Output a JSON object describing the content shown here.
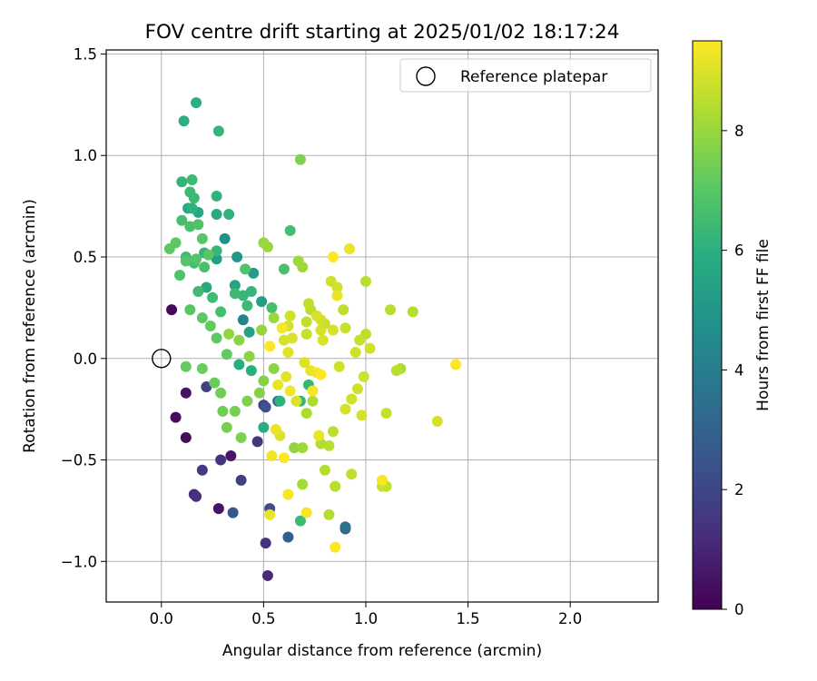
{
  "chart_data": {
    "type": "scatter",
    "title": "FOV centre drift starting at 2025/01/02 18:17:24",
    "xlabel": "Angular distance from reference (arcmin)",
    "ylabel": "Rotation from reference (arcmin)",
    "xlim": [
      -0.27,
      2.43
    ],
    "ylim": [
      -1.2,
      1.52
    ],
    "xticks": [
      {
        "v": 0.0,
        "label": "0.0"
      },
      {
        "v": 0.5,
        "label": "0.5"
      },
      {
        "v": 1.0,
        "label": "1.0"
      },
      {
        "v": 1.5,
        "label": "1.5"
      },
      {
        "v": 2.0,
        "label": "2.0"
      }
    ],
    "yticks": [
      {
        "v": -1.0,
        "label": "−1.0"
      },
      {
        "v": -0.5,
        "label": "−0.5"
      },
      {
        "v": 0.0,
        "label": "0.0"
      },
      {
        "v": 0.5,
        "label": "0.5"
      },
      {
        "v": 1.0,
        "label": "1.0"
      },
      {
        "v": 1.5,
        "label": "1.5"
      }
    ],
    "grid": true,
    "legend": {
      "position": "top-right",
      "label": "Reference platepar"
    },
    "reference_point": {
      "x": 0.0,
      "y": 0.0
    },
    "colorbar": {
      "label": "Hours from first FF file",
      "colormap": "viridis",
      "range": [
        0,
        9.5
      ],
      "ticks": [
        {
          "v": 0,
          "label": "0"
        },
        {
          "v": 2,
          "label": "2"
        },
        {
          "v": 4,
          "label": "4"
        },
        {
          "v": 6,
          "label": "6"
        },
        {
          "v": 8,
          "label": "8"
        }
      ]
    },
    "points": [
      [
        0.05,
        0.24,
        0.2
      ],
      [
        0.07,
        -0.29,
        0.3
      ],
      [
        0.12,
        -0.39,
        0.3
      ],
      [
        0.12,
        -0.17,
        0.5
      ],
      [
        0.28,
        -0.74,
        0.5
      ],
      [
        0.34,
        -0.48,
        0.6
      ],
      [
        0.16,
        -0.67,
        1.2
      ],
      [
        0.17,
        -0.68,
        1.3
      ],
      [
        0.52,
        -1.07,
        1.1
      ],
      [
        0.51,
        -0.91,
        1.3
      ],
      [
        0.29,
        -0.5,
        1.4
      ],
      [
        0.2,
        -0.55,
        1.6
      ],
      [
        0.39,
        -0.6,
        1.8
      ],
      [
        0.47,
        -0.41,
        1.5
      ],
      [
        0.22,
        -0.14,
        1.8
      ],
      [
        0.5,
        -0.23,
        1.9
      ],
      [
        0.53,
        -0.74,
        2.2
      ],
      [
        0.51,
        -0.24,
        2.4
      ],
      [
        0.35,
        -0.76,
        2.6
      ],
      [
        0.62,
        -0.88,
        2.8
      ],
      [
        0.9,
        -0.84,
        3.2
      ],
      [
        0.9,
        -0.83,
        3.4
      ],
      [
        0.57,
        -0.21,
        3.2
      ],
      [
        0.4,
        0.19,
        4.2
      ],
      [
        0.31,
        0.59,
        4.8
      ],
      [
        0.37,
        0.5,
        5.0
      ],
      [
        0.45,
        0.42,
        5.2
      ],
      [
        0.49,
        0.28,
        5.3
      ],
      [
        0.43,
        0.13,
        5.5
      ],
      [
        0.27,
        0.49,
        5.3
      ],
      [
        0.36,
        0.36,
        5.5
      ],
      [
        0.13,
        0.74,
        5.6
      ],
      [
        0.18,
        0.72,
        5.6
      ],
      [
        0.22,
        0.35,
        5.7
      ],
      [
        0.27,
        0.71,
        5.8
      ],
      [
        0.38,
        -0.03,
        5.9
      ],
      [
        0.5,
        -0.34,
        5.9
      ],
      [
        0.44,
        -0.06,
        6.0
      ],
      [
        0.11,
        1.17,
        6.0
      ],
      [
        0.17,
        1.26,
        6.0
      ],
      [
        0.15,
        0.74,
        6.1
      ],
      [
        0.27,
        0.8,
        6.1
      ],
      [
        0.33,
        0.71,
        6.1
      ],
      [
        0.28,
        1.12,
        6.2
      ],
      [
        0.1,
        0.87,
        6.2
      ],
      [
        0.15,
        0.88,
        6.4
      ],
      [
        0.14,
        0.82,
        6.4
      ],
      [
        0.16,
        0.79,
        6.4
      ],
      [
        0.21,
        0.52,
        6.2
      ],
      [
        0.27,
        0.53,
        6.3
      ],
      [
        0.36,
        0.32,
        6.4
      ],
      [
        0.4,
        0.31,
        6.3
      ],
      [
        0.42,
        0.26,
        6.4
      ],
      [
        0.44,
        0.33,
        6.3
      ],
      [
        0.25,
        0.3,
        6.5
      ],
      [
        0.29,
        0.23,
        6.6
      ],
      [
        0.18,
        0.33,
        6.5
      ],
      [
        0.12,
        0.5,
        6.5
      ],
      [
        0.16,
        0.47,
        6.6
      ],
      [
        0.21,
        0.45,
        6.7
      ],
      [
        0.41,
        0.44,
        6.8
      ],
      [
        0.63,
        0.63,
        6.6
      ],
      [
        0.6,
        0.44,
        6.7
      ],
      [
        0.68,
        -0.21,
        6.2
      ],
      [
        0.68,
        -0.8,
        6.4
      ],
      [
        0.72,
        -0.13,
        6.3
      ],
      [
        0.58,
        -0.21,
        6.1
      ],
      [
        0.54,
        0.25,
        6.6
      ],
      [
        0.1,
        0.68,
        6.6
      ],
      [
        0.14,
        0.65,
        6.7
      ],
      [
        0.18,
        0.66,
        6.8
      ],
      [
        0.09,
        0.41,
        6.8
      ],
      [
        0.12,
        0.48,
        6.9
      ],
      [
        0.17,
        0.49,
        6.9
      ],
      [
        0.2,
        0.59,
        7.0
      ],
      [
        0.23,
        0.51,
        7.0
      ],
      [
        0.04,
        0.54,
        7.1
      ],
      [
        0.07,
        0.57,
        7.1
      ],
      [
        0.14,
        0.24,
        7.0
      ],
      [
        0.2,
        0.2,
        7.1
      ],
      [
        0.24,
        0.16,
        7.2
      ],
      [
        0.27,
        0.1,
        7.1
      ],
      [
        0.32,
        0.02,
        7.2
      ],
      [
        0.12,
        -0.04,
        7.2
      ],
      [
        0.2,
        -0.05,
        7.3
      ],
      [
        0.26,
        -0.12,
        7.3
      ],
      [
        0.29,
        -0.17,
        7.4
      ],
      [
        0.3,
        -0.26,
        7.4
      ],
      [
        0.32,
        -0.34,
        7.5
      ],
      [
        0.36,
        -0.26,
        7.5
      ],
      [
        0.39,
        -0.39,
        7.6
      ],
      [
        0.42,
        -0.21,
        7.6
      ],
      [
        0.48,
        -0.17,
        7.7
      ],
      [
        0.5,
        -0.11,
        7.7
      ],
      [
        0.55,
        -0.05,
        7.8
      ],
      [
        0.43,
        0.01,
        7.8
      ],
      [
        0.38,
        0.09,
        7.8
      ],
      [
        0.33,
        0.12,
        7.9
      ],
      [
        0.49,
        0.14,
        7.9
      ],
      [
        0.55,
        0.2,
        8.0
      ],
      [
        0.52,
        0.55,
        8.0
      ],
      [
        0.5,
        0.57,
        8.0
      ],
      [
        0.67,
        0.48,
        8.1
      ],
      [
        0.69,
        0.45,
        8.1
      ],
      [
        0.68,
        0.98,
        7.6
      ],
      [
        0.65,
        -0.44,
        7.9
      ],
      [
        0.69,
        -0.44,
        8.1
      ],
      [
        0.69,
        -0.62,
        8.2
      ],
      [
        0.71,
        -0.27,
        8.3
      ],
      [
        0.74,
        -0.21,
        8.3
      ],
      [
        0.78,
        -0.42,
        8.4
      ],
      [
        0.8,
        -0.55,
        8.4
      ],
      [
        0.82,
        -0.43,
        8.5
      ],
      [
        0.84,
        -0.36,
        8.5
      ],
      [
        0.82,
        -0.77,
        8.4
      ],
      [
        0.85,
        -0.63,
        8.5
      ],
      [
        0.93,
        -0.57,
        8.6
      ],
      [
        1.1,
        -0.63,
        8.6
      ],
      [
        1.08,
        -0.63,
        8.7
      ],
      [
        1.1,
        -0.27,
        8.7
      ],
      [
        0.93,
        -0.2,
        8.8
      ],
      [
        0.96,
        -0.15,
        8.8
      ],
      [
        0.98,
        -0.28,
        8.9
      ],
      [
        0.99,
        -0.09,
        8.8
      ],
      [
        0.95,
        0.03,
        8.8
      ],
      [
        0.97,
        0.09,
        8.7
      ],
      [
        1.02,
        0.05,
        8.8
      ],
      [
        1.0,
        0.12,
        8.6
      ],
      [
        0.9,
        0.15,
        8.7
      ],
      [
        0.86,
        0.35,
        8.8
      ],
      [
        0.83,
        0.38,
        8.8
      ],
      [
        0.89,
        0.24,
        8.6
      ],
      [
        1.0,
        0.38,
        8.5
      ],
      [
        1.12,
        0.24,
        8.5
      ],
      [
        1.23,
        0.23,
        8.4
      ],
      [
        1.15,
        -0.06,
        8.5
      ],
      [
        1.17,
        -0.05,
        8.3
      ],
      [
        1.35,
        -0.31,
        8.9
      ],
      [
        0.92,
        0.54,
        9.2
      ],
      [
        0.84,
        0.5,
        9.5
      ],
      [
        0.86,
        0.31,
        9.2
      ],
      [
        0.76,
        0.21,
        8.9
      ],
      [
        0.78,
        0.19,
        8.8
      ],
      [
        0.72,
        0.27,
        8.6
      ],
      [
        0.71,
        0.18,
        8.6
      ],
      [
        0.73,
        0.24,
        8.5
      ],
      [
        0.71,
        0.12,
        8.7
      ],
      [
        0.78,
        0.14,
        8.9
      ],
      [
        0.79,
        0.09,
        9.0
      ],
      [
        0.63,
        0.21,
        8.8
      ],
      [
        0.62,
        0.16,
        8.9
      ],
      [
        0.6,
        0.09,
        8.9
      ],
      [
        0.64,
        0.1,
        9.0
      ],
      [
        0.62,
        0.03,
        9.1
      ],
      [
        0.59,
        0.15,
        9.4
      ],
      [
        0.53,
        0.06,
        9.5
      ],
      [
        0.57,
        -0.13,
        9.2
      ],
      [
        0.61,
        -0.09,
        9.1
      ],
      [
        0.63,
        -0.16,
        9.3
      ],
      [
        0.66,
        -0.21,
        9.0
      ],
      [
        0.7,
        -0.02,
        9.0
      ],
      [
        0.73,
        -0.06,
        9.2
      ],
      [
        0.76,
        -0.07,
        9.3
      ],
      [
        0.74,
        -0.16,
        9.4
      ],
      [
        0.78,
        -0.08,
        9.5
      ],
      [
        0.56,
        -0.35,
        9.2
      ],
      [
        0.58,
        -0.38,
        9.0
      ],
      [
        0.54,
        -0.48,
        9.3
      ],
      [
        0.6,
        -0.49,
        9.5
      ],
      [
        0.62,
        -0.67,
        9.4
      ],
      [
        0.53,
        -0.77,
        9.2
      ],
      [
        0.71,
        -0.76,
        9.4
      ],
      [
        0.85,
        -0.93,
        9.5
      ],
      [
        0.77,
        -0.38,
        9.2
      ],
      [
        1.08,
        -0.6,
        9.4
      ],
      [
        1.44,
        -0.03,
        9.5
      ],
      [
        0.9,
        -0.25,
        8.9
      ],
      [
        0.87,
        -0.04,
        8.8
      ],
      [
        0.8,
        0.17,
        8.7
      ],
      [
        0.84,
        0.14,
        8.9
      ]
    ]
  }
}
